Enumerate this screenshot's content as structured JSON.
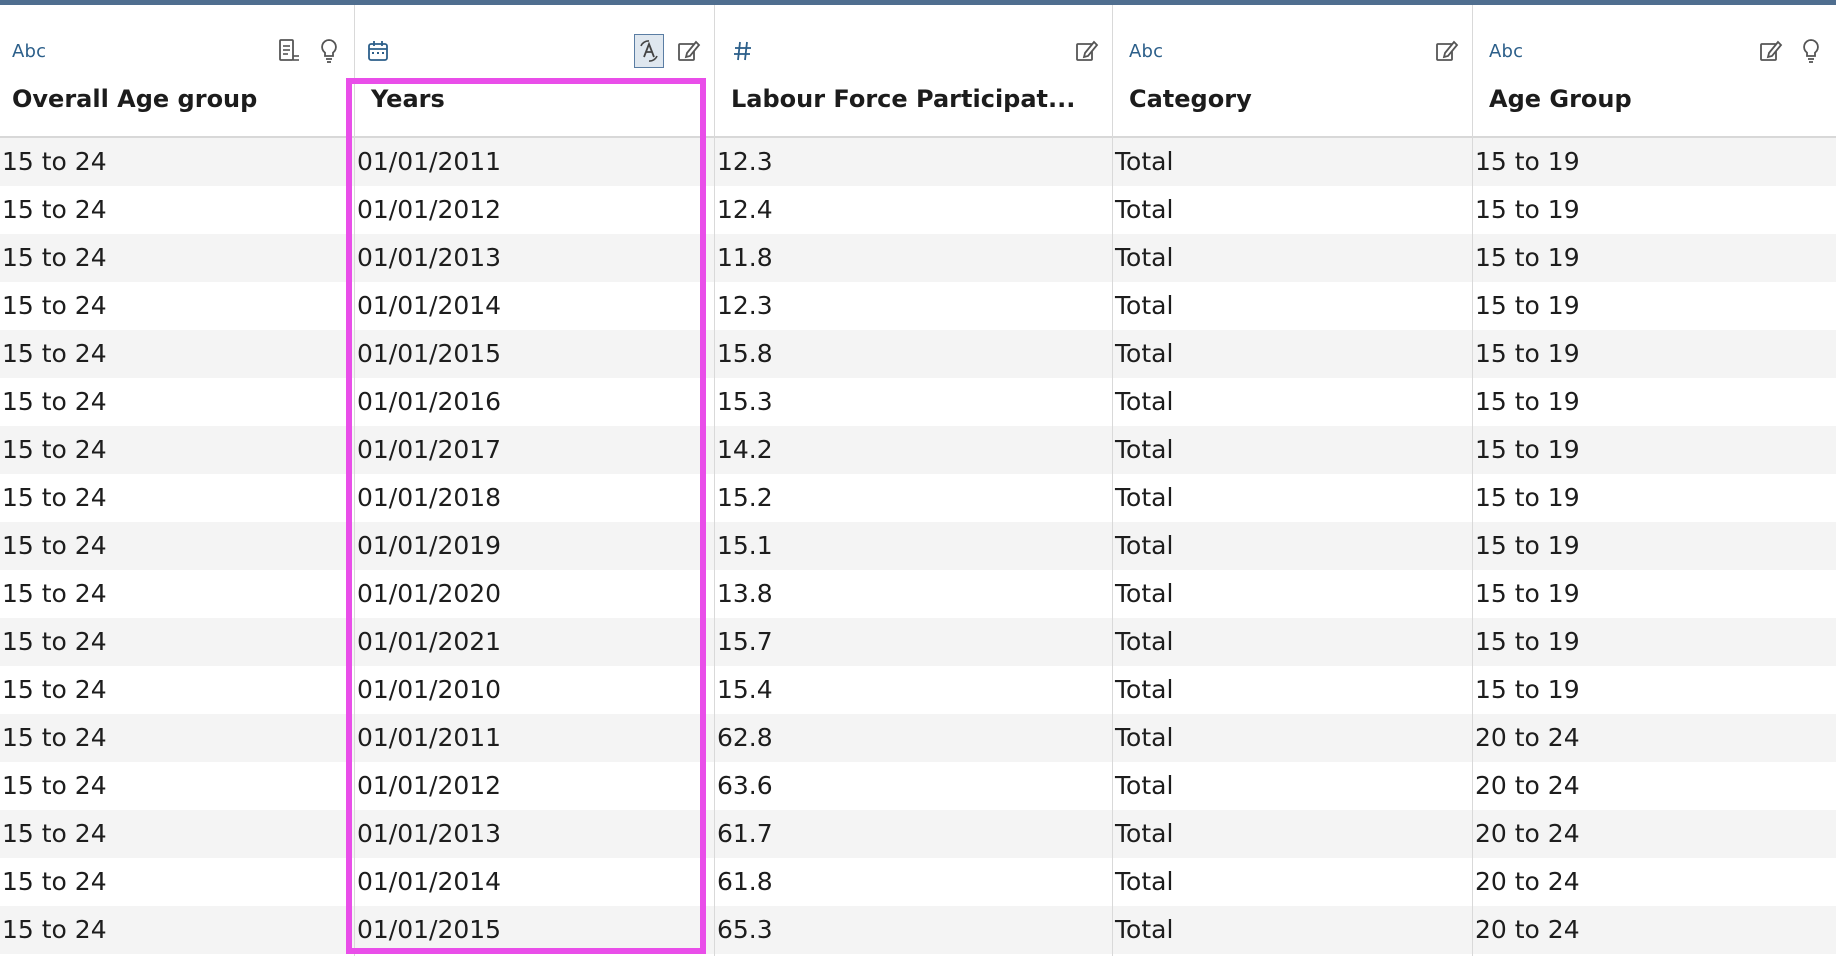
{
  "columns": [
    {
      "type_label": "Abc",
      "title": "Overall Age group",
      "icons": [
        "details-icon",
        "lightbulb-icon"
      ]
    },
    {
      "type_label": "",
      "title": "Years",
      "icons": [
        "change-type-icon",
        "edit-icon"
      ]
    },
    {
      "type_label": "",
      "title": "Labour Force Participat...",
      "icons": [
        "edit-icon"
      ]
    },
    {
      "type_label": "Abc",
      "title": "Category",
      "icons": [
        "edit-icon"
      ]
    },
    {
      "type_label": "Abc",
      "title": "Age Group",
      "icons": [
        "edit-icon",
        "lightbulb-icon"
      ]
    }
  ],
  "rows": [
    [
      "15 to 24",
      "01/01/2011",
      "12.3",
      "Total",
      "15 to 19"
    ],
    [
      "15 to 24",
      "01/01/2012",
      "12.4",
      "Total",
      "15 to 19"
    ],
    [
      "15 to 24",
      "01/01/2013",
      "11.8",
      "Total",
      "15 to 19"
    ],
    [
      "15 to 24",
      "01/01/2014",
      "12.3",
      "Total",
      "15 to 19"
    ],
    [
      "15 to 24",
      "01/01/2015",
      "15.8",
      "Total",
      "15 to 19"
    ],
    [
      "15 to 24",
      "01/01/2016",
      "15.3",
      "Total",
      "15 to 19"
    ],
    [
      "15 to 24",
      "01/01/2017",
      "14.2",
      "Total",
      "15 to 19"
    ],
    [
      "15 to 24",
      "01/01/2018",
      "15.2",
      "Total",
      "15 to 19"
    ],
    [
      "15 to 24",
      "01/01/2019",
      "15.1",
      "Total",
      "15 to 19"
    ],
    [
      "15 to 24",
      "01/01/2020",
      "13.8",
      "Total",
      "15 to 19"
    ],
    [
      "15 to 24",
      "01/01/2021",
      "15.7",
      "Total",
      "15 to 19"
    ],
    [
      "15 to 24",
      "01/01/2010",
      "15.4",
      "Total",
      "15 to 19"
    ],
    [
      "15 to 24",
      "01/01/2011",
      "62.8",
      "Total",
      "20 to 24"
    ],
    [
      "15 to 24",
      "01/01/2012",
      "63.6",
      "Total",
      "20 to 24"
    ],
    [
      "15 to 24",
      "01/01/2013",
      "61.7",
      "Total",
      "20 to 24"
    ],
    [
      "15 to 24",
      "01/01/2014",
      "61.8",
      "Total",
      "20 to 24"
    ],
    [
      "15 to 24",
      "01/01/2015",
      "65.3",
      "Total",
      "20 to 24"
    ]
  ],
  "colors": {
    "accent": "#2c5f8a",
    "highlight": "#e94ee9",
    "topbar": "#4f6e8f"
  }
}
